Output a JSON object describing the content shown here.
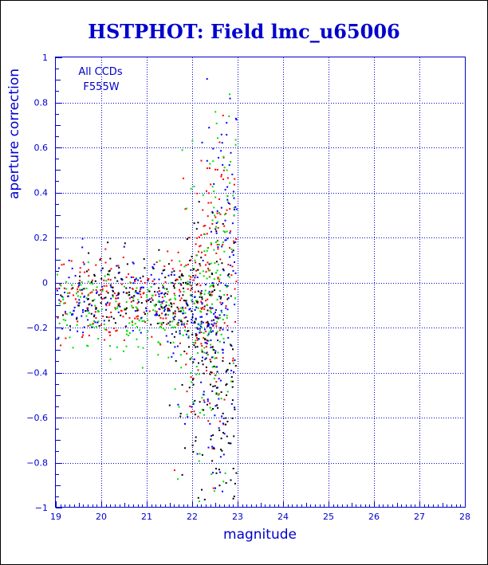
{
  "chart_data": {
    "type": "scatter",
    "title": "HSTPHOT: Field lmc_u65006",
    "xlabel": "magnitude",
    "ylabel": "aperture correction",
    "xlim": [
      19,
      28
    ],
    "ylim": [
      -1,
      1
    ],
    "x_ticks": [
      19,
      20,
      21,
      22,
      23,
      24,
      25,
      26,
      27,
      28
    ],
    "y_ticks": [
      -1,
      -0.8,
      -0.6,
      -0.4,
      -0.2,
      0,
      0.2,
      0.4,
      0.6,
      0.8,
      1
    ],
    "x_tick_labels": [
      "19",
      "20",
      "21",
      "22",
      "23",
      "24",
      "25",
      "26",
      "27",
      "28"
    ],
    "y_tick_labels": [
      "−1",
      "−0.8",
      "−0.6",
      "−0.4",
      "−0.2",
      "0",
      "0.2",
      "0.4",
      "0.6",
      "0.8",
      "1"
    ],
    "grid": true,
    "annotations": [
      "All CCDs",
      "F555W"
    ],
    "colors": {
      "frame": "#0000cc",
      "grid": "#0000cc",
      "text": "#0000cc",
      "series": [
        "#ff0000",
        "#00dd00",
        "#0000ff",
        "#000000"
      ]
    },
    "series": [
      {
        "color": "#ff0000",
        "cluster_centers": [
          [
            19.4,
            -0.05
          ],
          [
            20.5,
            -0.08
          ],
          [
            21.5,
            -0.06
          ],
          [
            22.3,
            -0.1
          ],
          [
            22.6,
            0.1
          ]
        ]
      },
      {
        "color": "#00dd00",
        "cluster_centers": [
          [
            19.6,
            -0.1
          ],
          [
            20.8,
            -0.15
          ],
          [
            21.7,
            -0.12
          ],
          [
            22.4,
            -0.3
          ],
          [
            22.7,
            0.2
          ]
        ]
      },
      {
        "color": "#0000ff",
        "cluster_centers": [
          [
            19.5,
            -0.08
          ],
          [
            21.0,
            -0.05
          ],
          [
            22.0,
            -0.15
          ],
          [
            22.5,
            -0.4
          ],
          [
            22.8,
            0.3
          ]
        ]
      },
      {
        "color": "#000000",
        "cluster_centers": [
          [
            20.2,
            -0.05
          ],
          [
            21.6,
            -0.05
          ],
          [
            22.2,
            -0.2
          ],
          [
            22.7,
            -0.6
          ]
        ]
      }
    ]
  }
}
